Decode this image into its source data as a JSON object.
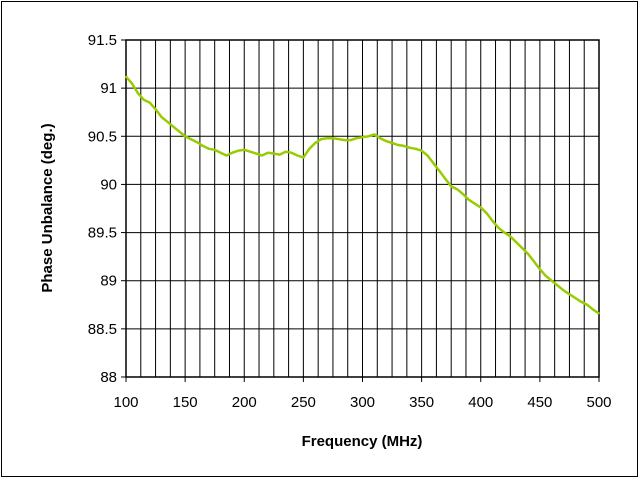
{
  "chart_data": {
    "type": "line",
    "title": "",
    "xlabel": "Frequency (MHz)",
    "ylabel": "Phase Unbalance (deg.)",
    "xlim": [
      100,
      500
    ],
    "ylim": [
      88,
      91.5
    ],
    "x_ticks": [
      100,
      150,
      200,
      250,
      300,
      350,
      400,
      450,
      500
    ],
    "y_ticks": [
      88,
      88.5,
      89,
      89.5,
      90,
      90.5,
      91,
      91.5
    ],
    "x_tick_labels": [
      "100",
      "150",
      "200",
      "250",
      "300",
      "350",
      "400",
      "450",
      "500"
    ],
    "y_tick_labels": [
      "88",
      "88.5",
      "89",
      "89.5",
      "90",
      "90.5",
      "91",
      "91.5"
    ],
    "x_grid_step": 12.5,
    "grid": true,
    "legend": "none",
    "line_color": "#99cc00",
    "series": [
      {
        "x": [
          100,
          105,
          110,
          115,
          120,
          125,
          130,
          135,
          140,
          145,
          150,
          155,
          160,
          165,
          170,
          175,
          180,
          185,
          190,
          195,
          200,
          205,
          210,
          215,
          220,
          225,
          230,
          235,
          240,
          245,
          250,
          255,
          260,
          265,
          270,
          275,
          280,
          285,
          290,
          295,
          300,
          305,
          310,
          315,
          320,
          325,
          330,
          335,
          340,
          345,
          350,
          355,
          360,
          365,
          370,
          375,
          380,
          385,
          390,
          395,
          400,
          405,
          410,
          415,
          420,
          425,
          430,
          435,
          440,
          445,
          450,
          455,
          460,
          465,
          470,
          475,
          480,
          485,
          490,
          495,
          500
        ],
        "values": [
          91.12,
          91.05,
          90.95,
          90.88,
          90.85,
          90.78,
          90.7,
          90.65,
          90.6,
          90.55,
          90.5,
          90.47,
          90.44,
          90.4,
          90.37,
          90.36,
          90.33,
          90.3,
          90.33,
          90.35,
          90.36,
          90.34,
          90.32,
          90.3,
          90.33,
          90.32,
          90.31,
          90.34,
          90.33,
          90.3,
          90.28,
          90.37,
          90.43,
          90.47,
          90.48,
          90.48,
          90.47,
          90.46,
          90.46,
          90.48,
          90.49,
          90.5,
          90.52,
          90.48,
          90.45,
          90.43,
          90.41,
          90.4,
          90.38,
          90.37,
          90.35,
          90.3,
          90.22,
          90.14,
          90.06,
          89.98,
          89.95,
          89.9,
          89.84,
          89.8,
          89.76,
          89.7,
          89.62,
          89.55,
          89.5,
          89.46,
          89.4,
          89.34,
          89.28,
          89.2,
          89.12,
          89.05,
          89.0,
          88.95,
          88.9,
          88.86,
          88.82,
          88.78,
          88.75,
          88.7,
          88.66
        ]
      }
    ]
  }
}
